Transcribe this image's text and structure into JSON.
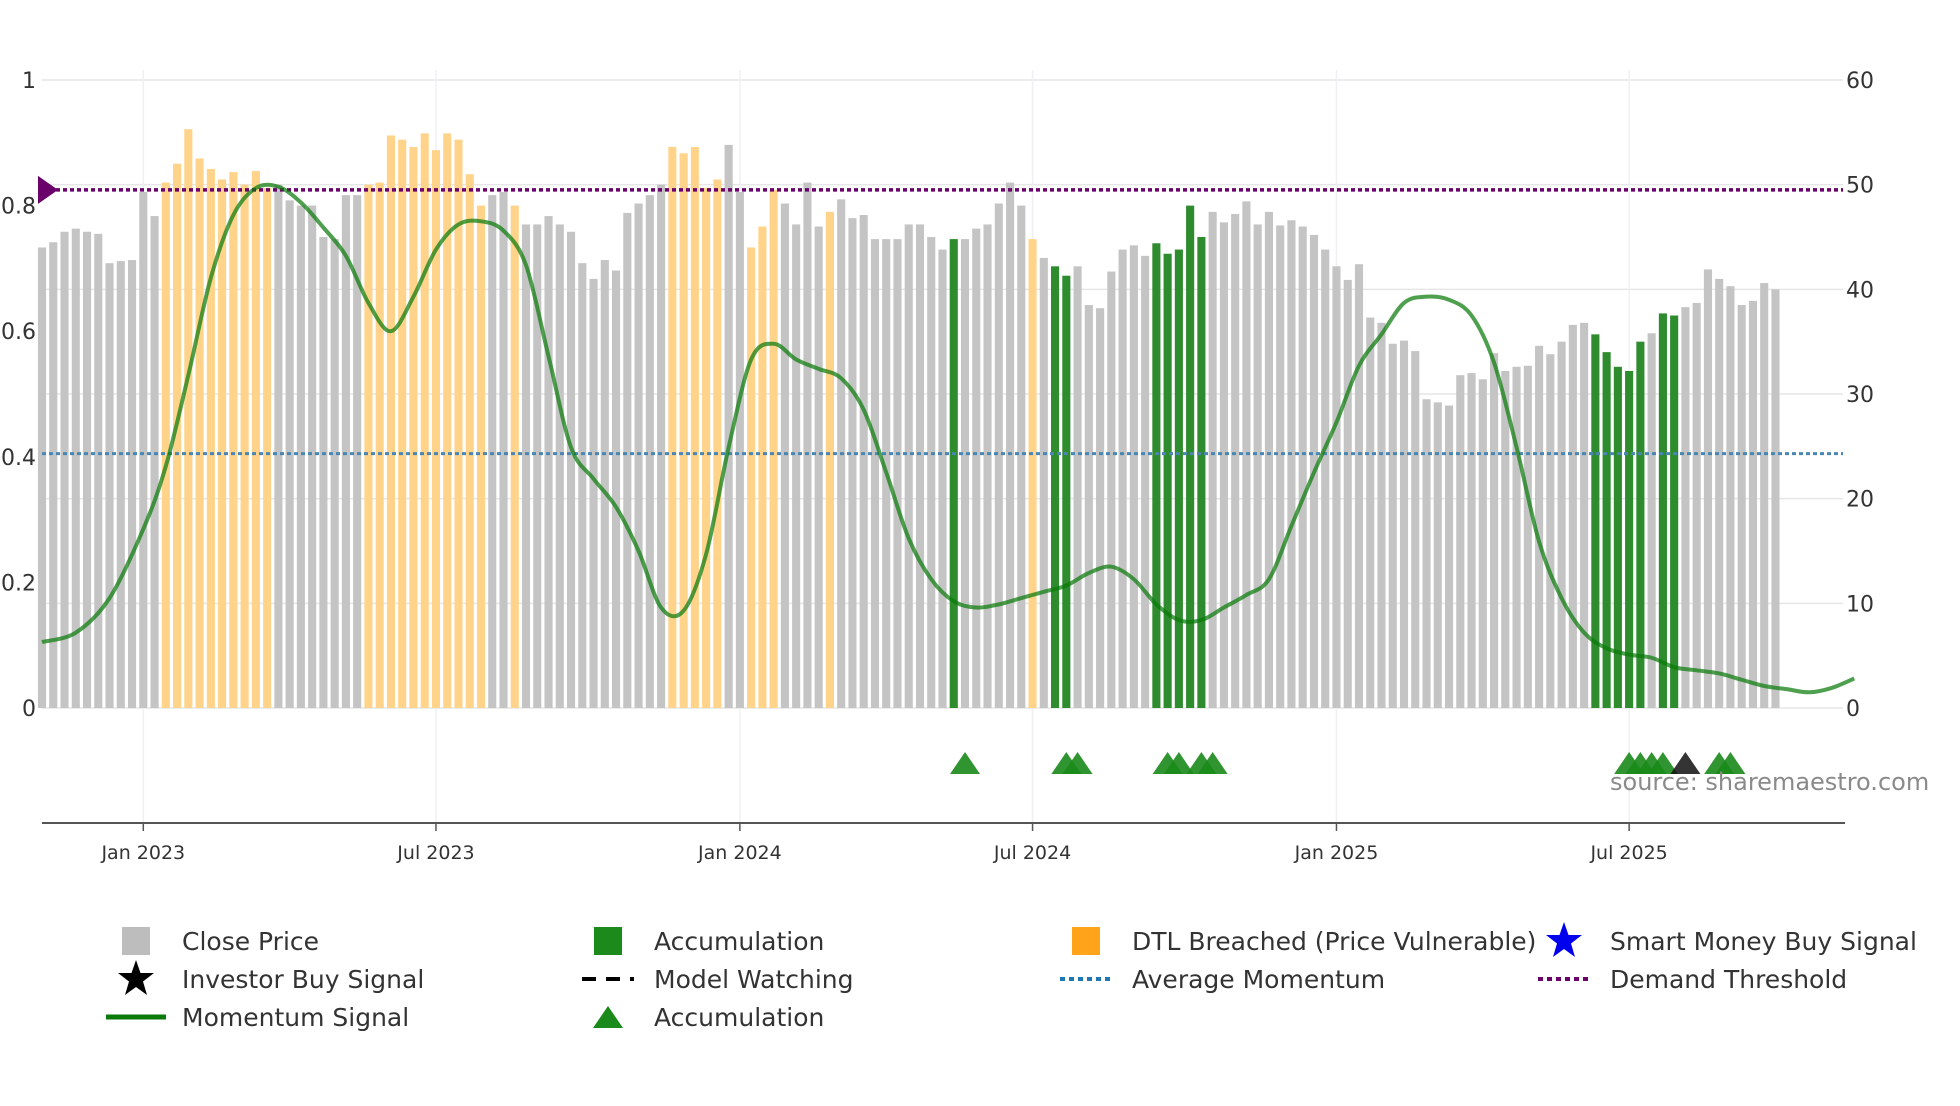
{
  "chart_data": {
    "type": "bar",
    "title": "",
    "left_axis": {
      "ylim": [
        0,
        1
      ],
      "ticks": [
        "0",
        "0.2",
        "0.4",
        "0.6",
        "0.8",
        "1"
      ],
      "tick_values": [
        0,
        0.2,
        0.4,
        0.6,
        0.8,
        1
      ]
    },
    "right_axis": {
      "ylim": [
        0,
        60
      ],
      "ticks": [
        "0",
        "10",
        "20",
        "30",
        "40",
        "50",
        "60"
      ],
      "tick_values": [
        0,
        10,
        20,
        30,
        40,
        50,
        60
      ]
    },
    "x_axis": {
      "ticks": [
        {
          "label": "Jan 2023",
          "index": 9
        },
        {
          "label": "Jul 2023",
          "index": 35
        },
        {
          "label": "Jan 2024",
          "index": 62
        },
        {
          "label": "Jul 2024",
          "index": 88
        },
        {
          "label": "Jan 2025",
          "index": 115
        },
        {
          "label": "Jul 2025",
          "index": 141
        }
      ],
      "count": 161
    },
    "close_price": [
      44,
      44.5,
      45.5,
      45.8,
      45.5,
      45.3,
      42.5,
      42.7,
      42.8,
      49.3,
      47,
      50.2,
      52,
      55.3,
      52.5,
      51.5,
      50.5,
      51.2,
      50,
      51.3,
      49.7,
      50,
      48.5,
      48,
      48,
      45,
      44.8,
      49,
      49,
      50,
      50.2,
      54.7,
      54.3,
      53.6,
      54.9,
      53.3,
      54.9,
      54.3,
      51,
      48,
      49,
      49.3,
      48,
      46.2,
      46.2,
      47,
      46.2,
      45.5,
      42.5,
      41,
      42.8,
      41.8,
      47.3,
      48.2,
      49,
      50,
      53.6,
      53,
      53.6,
      49.7,
      50.5,
      53.8,
      49.3,
      44,
      46,
      49.5,
      48.2,
      46.2,
      50.2,
      46,
      47.4,
      48.6,
      46.8,
      47.1,
      44.8,
      44.8,
      44.8,
      46.2,
      46.2,
      45,
      43.8,
      44.8,
      44.8,
      45.8,
      46.2,
      48.2,
      50.2,
      48,
      44.8,
      43,
      42.2,
      41.3,
      42.2,
      38.5,
      38.2,
      41.7,
      43.8,
      44.2,
      43.2,
      44.4,
      43.4,
      43.8,
      48,
      45,
      47.4,
      46.4,
      47.2,
      48.4,
      46.2,
      47.4,
      46.1,
      46.6,
      46,
      45.2,
      43.8,
      42.2,
      40.9,
      42.4,
      37.3,
      36.8,
      34.8,
      35.1,
      34.1,
      29.5,
      29.2,
      28.9,
      31.8,
      32,
      31.4,
      33.9,
      32.2,
      32.6,
      32.7,
      34.6,
      33.8,
      35,
      36.6,
      36.8,
      35.7,
      34,
      32.6,
      32.2,
      35,
      35.8,
      37.7,
      37.5,
      38.3,
      38.7,
      41.9,
      41,
      40.3,
      38.5,
      38.9,
      40.6,
      40
    ],
    "accumulation_bar_indices": [
      81,
      90,
      91,
      99,
      100,
      101,
      102,
      103,
      138,
      139,
      140,
      141,
      142,
      144,
      145
    ],
    "dtl_breached_indices": [
      11,
      12,
      13,
      14,
      15,
      16,
      17,
      18,
      19,
      20,
      29,
      30,
      31,
      32,
      33,
      34,
      35,
      36,
      37,
      38,
      39,
      42,
      56,
      57,
      58,
      59,
      60,
      63,
      64,
      65,
      70,
      88
    ],
    "momentum_signal": [
      [
        0,
        0.105
      ],
      [
        3,
        0.12
      ],
      [
        6,
        0.175
      ],
      [
        9,
        0.285
      ],
      [
        11,
        0.385
      ],
      [
        13,
        0.53
      ],
      [
        15,
        0.685
      ],
      [
        17,
        0.785
      ],
      [
        19,
        0.828
      ],
      [
        21,
        0.83
      ],
      [
        23,
        0.805
      ],
      [
        25,
        0.765
      ],
      [
        27,
        0.72
      ],
      [
        29,
        0.645
      ],
      [
        31,
        0.6
      ],
      [
        33,
        0.655
      ],
      [
        35,
        0.73
      ],
      [
        37,
        0.77
      ],
      [
        39,
        0.775
      ],
      [
        41,
        0.76
      ],
      [
        43,
        0.705
      ],
      [
        45,
        0.56
      ],
      [
        47,
        0.415
      ],
      [
        49,
        0.365
      ],
      [
        51,
        0.32
      ],
      [
        53,
        0.25
      ],
      [
        55,
        0.16
      ],
      [
        57,
        0.155
      ],
      [
        59,
        0.245
      ],
      [
        61,
        0.415
      ],
      [
        63,
        0.555
      ],
      [
        65,
        0.58
      ],
      [
        67,
        0.555
      ],
      [
        69,
        0.54
      ],
      [
        71,
        0.525
      ],
      [
        73,
        0.475
      ],
      [
        75,
        0.375
      ],
      [
        77,
        0.27
      ],
      [
        79,
        0.205
      ],
      [
        81,
        0.17
      ],
      [
        83,
        0.16
      ],
      [
        85,
        0.165
      ],
      [
        87,
        0.175
      ],
      [
        89,
        0.185
      ],
      [
        91,
        0.195
      ],
      [
        93,
        0.215
      ],
      [
        95,
        0.225
      ],
      [
        97,
        0.205
      ],
      [
        99,
        0.165
      ],
      [
        101,
        0.14
      ],
      [
        103,
        0.14
      ],
      [
        105,
        0.16
      ],
      [
        107,
        0.18
      ],
      [
        109,
        0.205
      ],
      [
        111,
        0.29
      ],
      [
        113,
        0.375
      ],
      [
        115,
        0.455
      ],
      [
        117,
        0.545
      ],
      [
        119,
        0.595
      ],
      [
        121,
        0.645
      ],
      [
        123,
        0.655
      ],
      [
        125,
        0.65
      ],
      [
        127,
        0.625
      ],
      [
        129,
        0.55
      ],
      [
        131,
        0.415
      ],
      [
        133,
        0.265
      ],
      [
        135,
        0.175
      ],
      [
        137,
        0.12
      ],
      [
        139,
        0.095
      ],
      [
        141,
        0.085
      ],
      [
        143,
        0.08
      ],
      [
        145,
        0.065
      ],
      [
        147,
        0.06
      ],
      [
        149,
        0.055
      ],
      [
        151,
        0.045
      ],
      [
        153,
        0.035
      ],
      [
        155,
        0.03
      ],
      [
        157,
        0.025
      ],
      [
        159,
        0.032
      ],
      [
        161,
        0.047
      ]
    ],
    "momentum_signal_note": "",
    "average_momentum": 0.405,
    "demand_threshold": 0.825,
    "accumulation_markers": [
      82,
      91,
      92,
      100,
      101,
      103,
      104,
      141,
      142,
      143,
      144,
      149,
      150
    ],
    "investor_buy_markers": [
      146
    ],
    "legend": [
      {
        "label": "Close Price",
        "kind": "square",
        "color": "#bdbdbd"
      },
      {
        "label": "Accumulation",
        "kind": "square",
        "color": "#1a8a1a"
      },
      {
        "label": "DTL Breached (Price Vulnerable)",
        "kind": "square",
        "color": "#ffa31a"
      },
      {
        "label": "Smart Money Buy Signal",
        "kind": "star",
        "color": "#0000ee"
      },
      {
        "label": "Investor Buy Signal",
        "kind": "star",
        "color": "#000000"
      },
      {
        "label": "Model Watching",
        "kind": "dash",
        "color": "#000000"
      },
      {
        "label": "Average Momentum",
        "kind": "dot",
        "color": "#1f77b4"
      },
      {
        "label": "Demand Threshold",
        "kind": "dot",
        "color": "#6a006a"
      },
      {
        "label": "Momentum Signal",
        "kind": "line",
        "color": "#0a7a0a"
      },
      {
        "label": "Accumulation",
        "kind": "triangle",
        "color": "#1a8a1a"
      }
    ],
    "source": "source: sharemaestro.com"
  },
  "colors": {
    "close": "#c4c4c4",
    "accumulation": "#2e8b2e",
    "dtl": "#ffd48a",
    "momentum": "#0a7a0a",
    "average": "#4a86b4",
    "threshold": "#6a006a",
    "axis": "#555555",
    "grid": "#e6e6e6"
  }
}
